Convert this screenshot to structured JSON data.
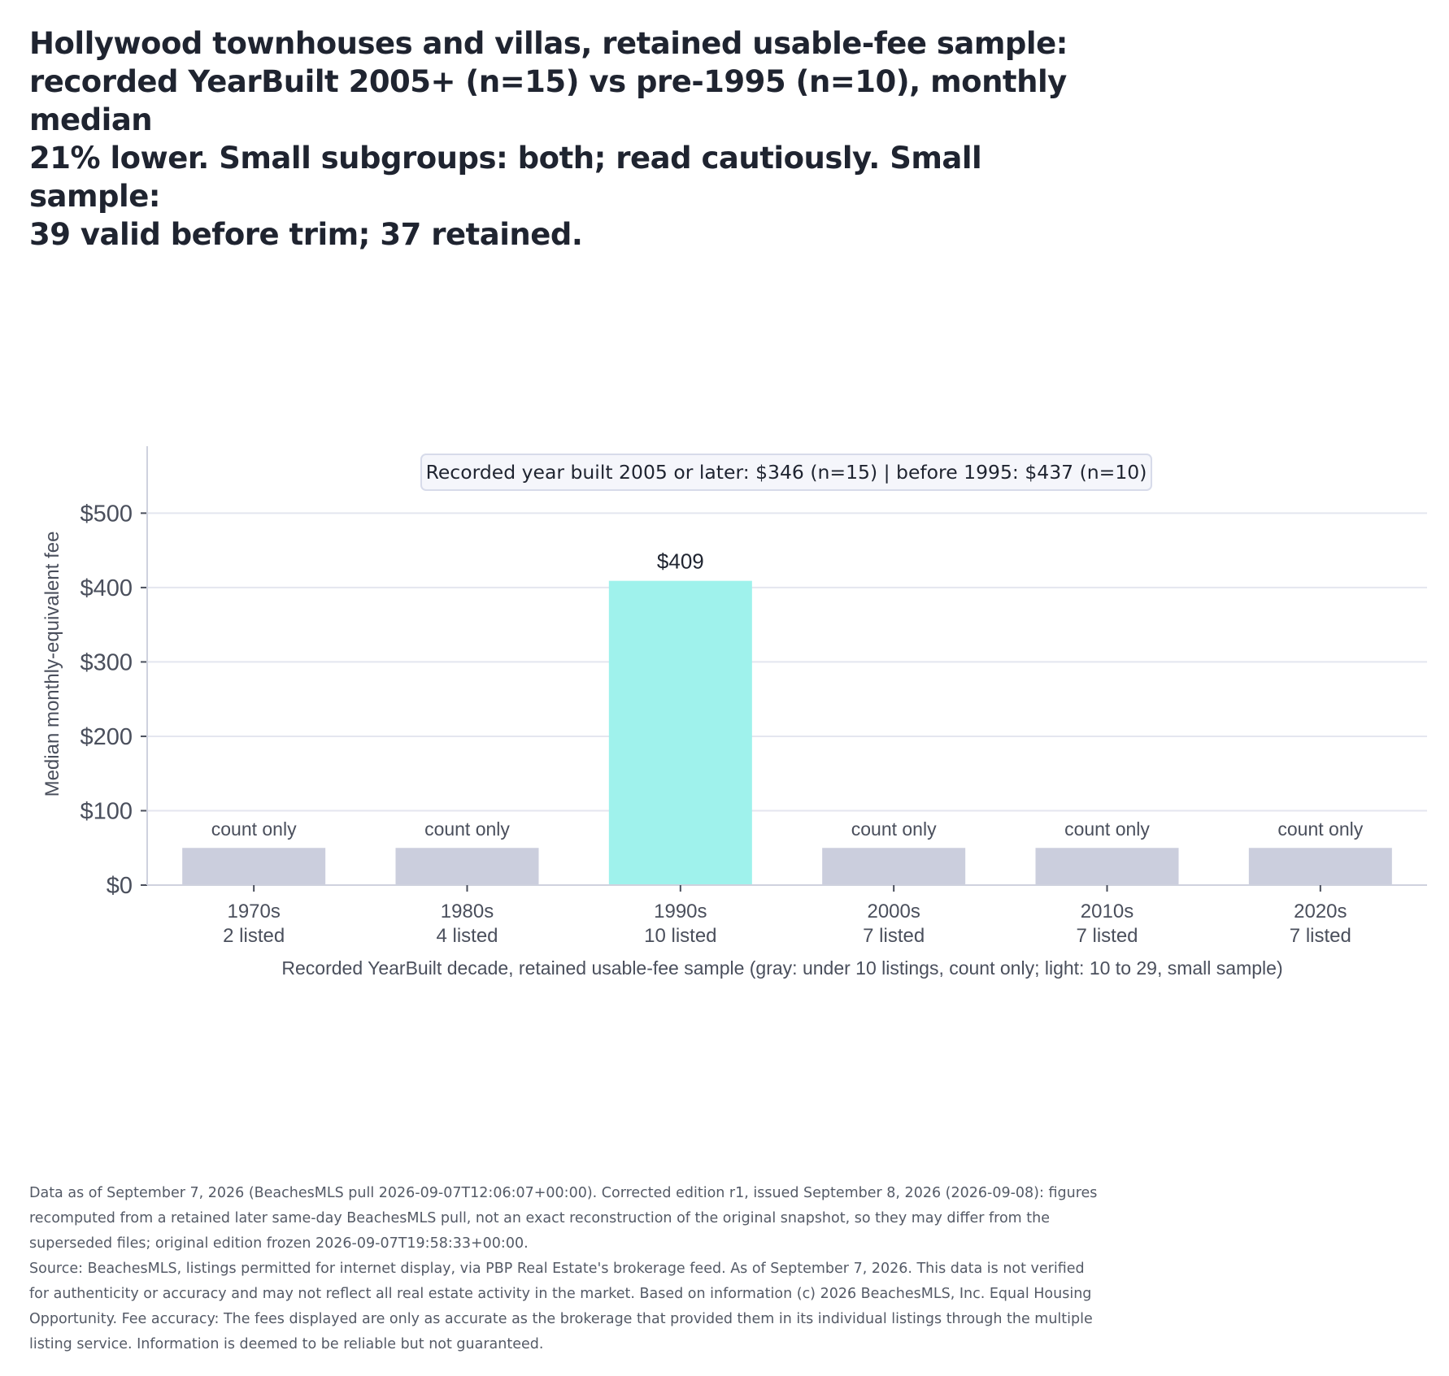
{
  "title_lines": [
    "Hollywood townhouses and villas, retained usable-fee sample:",
    "recorded YearBuilt 2005+ (n=15) vs pre-1995 (n=10), monthly median",
    "21% lower. Small subgroups: both; read cautiously. Small sample:",
    "39 valid before trim; 37 retained."
  ],
  "callout": "Recorded year built 2005 or later: $346 (n=15)   |   before 1995: $437 (n=10)",
  "footnote_lines": [
    "Data as of September 7, 2026 (BeachesMLS pull 2026-09-07T12:06:07+00:00). Corrected edition r1, issued September 8, 2026 (2026-09-08): figures",
    "recomputed from a retained later same-day BeachesMLS pull, not an exact reconstruction of the original snapshot, so they may differ from the",
    "superseded files; original edition frozen 2026-09-07T19:58:33+00:00.",
    "Source: BeachesMLS, listings permitted for internet display, via PBP Real Estate's brokerage feed. As of September 7, 2026. This data is not verified",
    "for authenticity or accuracy and may not reflect all real estate activity in the market. Based on information (c) 2026 BeachesMLS, Inc. Equal Housing",
    "Opportunity. Fee accuracy: The fees displayed are only as accurate as the brokerage that provided them in its individual listings through the multiple",
    "listing service. Information is deemed to be reliable but not guaranteed."
  ],
  "colors": {
    "count_only": "#cbcedd",
    "small_sample": "#9ff2ec",
    "grid": "#e4e6ef",
    "axis": "#cfd2de",
    "tick_text": "#4a4f5c"
  },
  "chart_data": {
    "type": "bar",
    "xlabel": "Recorded YearBuilt decade, retained usable-fee sample (gray: under 10 listings, count only; light: 10 to 29, small sample)",
    "ylabel": "Median monthly-equivalent fee",
    "ylim": [
      0,
      590
    ],
    "yticks": [
      0,
      100,
      200,
      300,
      400,
      500
    ],
    "ytick_labels": [
      "$0",
      "$100",
      "$200",
      "$300",
      "$400",
      "$500"
    ],
    "grid": "horizontal",
    "count_only_placeholder": 50,
    "categories": [
      "1970s",
      "1980s",
      "1990s",
      "2000s",
      "2010s",
      "2020s"
    ],
    "count_labels": [
      "2 listed",
      "4 listed",
      "10 listed",
      "7 listed",
      "7 listed",
      "7 listed"
    ],
    "counts": [
      2,
      4,
      10,
      7,
      7,
      7
    ],
    "values": [
      null,
      null,
      409,
      null,
      null,
      null
    ],
    "bar_labels": [
      "count only",
      "count only",
      "$409",
      "count only",
      "count only",
      "count only"
    ]
  }
}
